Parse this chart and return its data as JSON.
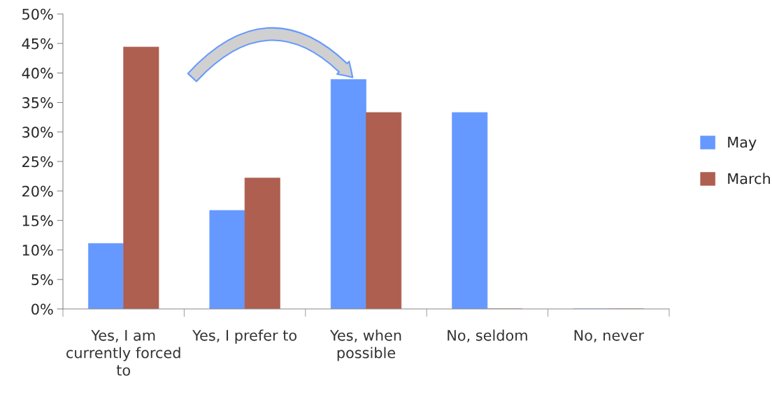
{
  "chart_data": {
    "type": "bar",
    "categories": [
      "Yes, I am currently forced to",
      "Yes, I prefer to",
      "Yes, when possible",
      "No, seldom",
      "No, never"
    ],
    "series": [
      {
        "name": "May",
        "color": "#6699ff",
        "values": [
          11.1,
          16.7,
          38.9,
          33.3,
          0
        ]
      },
      {
        "name": "March",
        "color": "#ae5f4f",
        "values": [
          44.4,
          22.2,
          33.3,
          0,
          0
        ]
      }
    ],
    "ylim": [
      0,
      50
    ],
    "yticks": [
      {
        "value": 0,
        "label": "0%"
      },
      {
        "value": 5,
        "label": "5%"
      },
      {
        "value": 10,
        "label": "10%"
      },
      {
        "value": 15,
        "label": "15%"
      },
      {
        "value": 20,
        "label": "20%"
      },
      {
        "value": 25,
        "label": "25%"
      },
      {
        "value": 30,
        "label": "30%"
      },
      {
        "value": 35,
        "label": "35%"
      },
      {
        "value": 40,
        "label": "40%"
      },
      {
        "value": 45,
        "label": "45%"
      },
      {
        "value": 50,
        "label": "50%"
      }
    ],
    "grid": false,
    "legend": "right"
  }
}
